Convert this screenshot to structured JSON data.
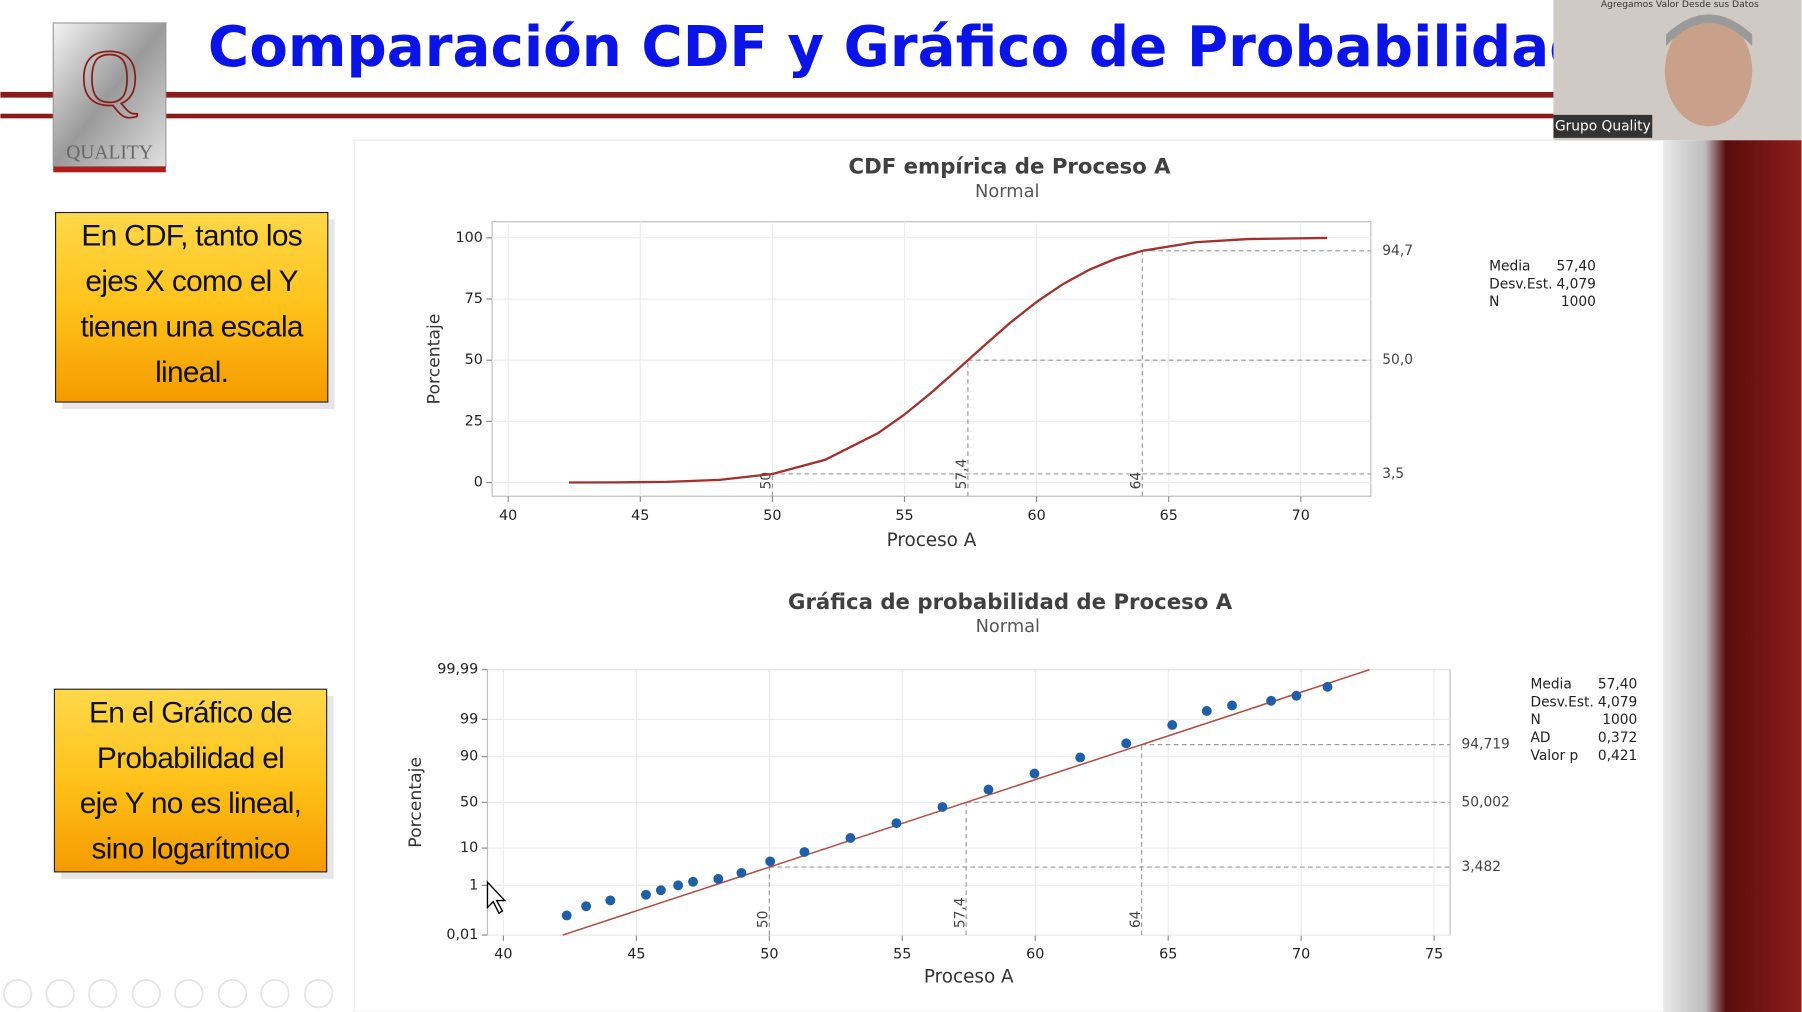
{
  "header": {
    "title": "Comparación CDF y Gráfico de Probabilidad"
  },
  "logo": {
    "text": "QUALITY"
  },
  "webcam": {
    "label": "Grupo Quality",
    "banner": "Agregamos Valor Desde sus Datos"
  },
  "notes": [
    {
      "lines": [
        "En CDF, tanto los",
        "ejes X como el Y",
        "tienen una escala",
        "lineal."
      ]
    },
    {
      "lines": [
        "En el Gráfico de",
        "Probabilidad el",
        "eje Y no es lineal,",
        "sino logarítmico"
      ]
    }
  ],
  "chart_data": [
    {
      "type": "line",
      "title": "CDF empírica de Proceso A",
      "subtitle": "Normal",
      "x_label": "Proceso A",
      "y_label": "Porcentaje",
      "x": [
        42.3,
        44,
        46,
        48,
        50,
        52,
        54,
        55,
        56,
        57,
        58,
        59,
        60,
        61,
        62,
        63,
        64,
        66,
        68,
        71
      ],
      "values": [
        0.01,
        0.05,
        0.26,
        1.1,
        3.5,
        9.3,
        20.2,
        27.8,
        36.6,
        46.1,
        55.8,
        65.3,
        73.8,
        81.1,
        87.0,
        91.5,
        94.7,
        98.2,
        99.5,
        99.96
      ],
      "color": "#a3302c",
      "xlim": [
        39.39,
        72.65
      ],
      "ylim": [
        -5.6,
        106.6
      ],
      "xticks": [
        40,
        45,
        50,
        55,
        60,
        65,
        70
      ],
      "yticks": [
        0,
        25,
        50,
        75,
        100
      ],
      "grid": true,
      "reference_x": [
        50,
        {
          "value": 57.4,
          "label": "57,4"
        },
        64
      ],
      "reference_y": [
        {
          "value": 3.5,
          "label": "3,5"
        },
        {
          "value": 50.0,
          "label": "50,0"
        },
        {
          "value": 94.7,
          "label": "94,7"
        }
      ],
      "stats": [
        {
          "label": "Media",
          "value": "57,40"
        },
        {
          "label": "Desv.Est.",
          "value": "4,079"
        },
        {
          "label": "N",
          "value": "1000"
        }
      ]
    },
    {
      "type": "scatter",
      "title": "Gráfica de probabilidad de Proceso A",
      "subtitle": "Normal",
      "x_label": "Proceso A",
      "y_label": "Porcentaje",
      "x": [
        42.38,
        43.11,
        44.02,
        45.36,
        45.92,
        46.57,
        47.13,
        48.08,
        48.95,
        50.03,
        51.32,
        53.05,
        54.78,
        56.51,
        58.24,
        59.97,
        61.69,
        63.42,
        65.15,
        66.45,
        67.4,
        68.87,
        69.82,
        70.99
      ],
      "values": [
        0.076,
        0.18,
        0.3,
        0.48,
        0.69,
        1.0,
        1.3,
        1.6,
        2.4,
        4.9,
        8.2,
        15.9,
        28,
        44.8,
        64,
        79,
        89.6,
        95.1,
        98.5,
        99.48,
        99.67,
        99.78,
        99.86,
        99.94
      ],
      "color": "#1f5fa8",
      "fit": {
        "x": [
          42.23,
          72.57
        ],
        "values": [
          0.01,
          99.99
        ],
        "color": "#b5483f"
      },
      "yscale": "probability",
      "xlim": [
        39.4,
        75.6
      ],
      "ylim": [
        0.01,
        99.99
      ],
      "xticks": [
        40,
        45,
        50,
        55,
        60,
        65,
        70,
        75
      ],
      "yticks": [
        {
          "value": 0.01,
          "label": "0,01"
        },
        1,
        10,
        50,
        90,
        99,
        {
          "value": 99.99,
          "label": "99,99"
        }
      ],
      "grid": true,
      "reference_x": [
        50,
        {
          "value": 57.4,
          "label": "57,4"
        },
        64
      ],
      "reference_y": [
        {
          "value": 3.482,
          "label": "3,482"
        },
        {
          "value": 50.002,
          "label": "50,002"
        },
        {
          "value": 94.719,
          "label": "94,719"
        }
      ],
      "stats": [
        {
          "label": "Media",
          "value": "57,40"
        },
        {
          "label": "Desv.Est.",
          "value": "4,079"
        },
        {
          "label": "N",
          "value": "1000"
        },
        {
          "label": "AD",
          "value": "0,372"
        },
        {
          "label": "Valor p",
          "value": "0,421"
        }
      ]
    }
  ]
}
